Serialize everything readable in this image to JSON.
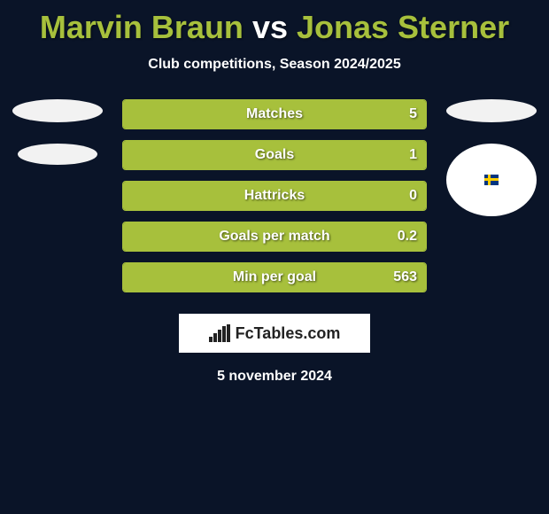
{
  "title": {
    "player1": "Marvin Braun",
    "vs_word": "vs",
    "player2": "Jonas Sterner",
    "player1_color": "#a7c03c",
    "player2_color": "#a7c03c"
  },
  "subtitle": "Club competitions, Season 2024/2025",
  "stats": {
    "border_color": "#a7c03c",
    "fill_color_left": "#a7c03c",
    "rows": [
      {
        "label": "Matches",
        "left_fill": 1.0,
        "right_val": "5"
      },
      {
        "label": "Goals",
        "left_fill": 1.0,
        "right_val": "1"
      },
      {
        "label": "Hattricks",
        "left_fill": 1.0,
        "right_val": "0"
      },
      {
        "label": "Goals per match",
        "left_fill": 1.0,
        "right_val": "0.2"
      },
      {
        "label": "Min per goal",
        "left_fill": 1.0,
        "right_val": "563"
      }
    ]
  },
  "avatars": {
    "left": {
      "top_oval_color": "#f2f2f2",
      "bottom_oval_color": "#f2f2f2",
      "shape": "two-ovals"
    },
    "right": {
      "top_oval_color": "#f2f2f2",
      "shape": "oval-circle",
      "circle_bg": "#ffffff",
      "flag": "sweden"
    }
  },
  "brand": "FcTables.com",
  "date": "5 november 2024",
  "background_color": "#0a1428"
}
